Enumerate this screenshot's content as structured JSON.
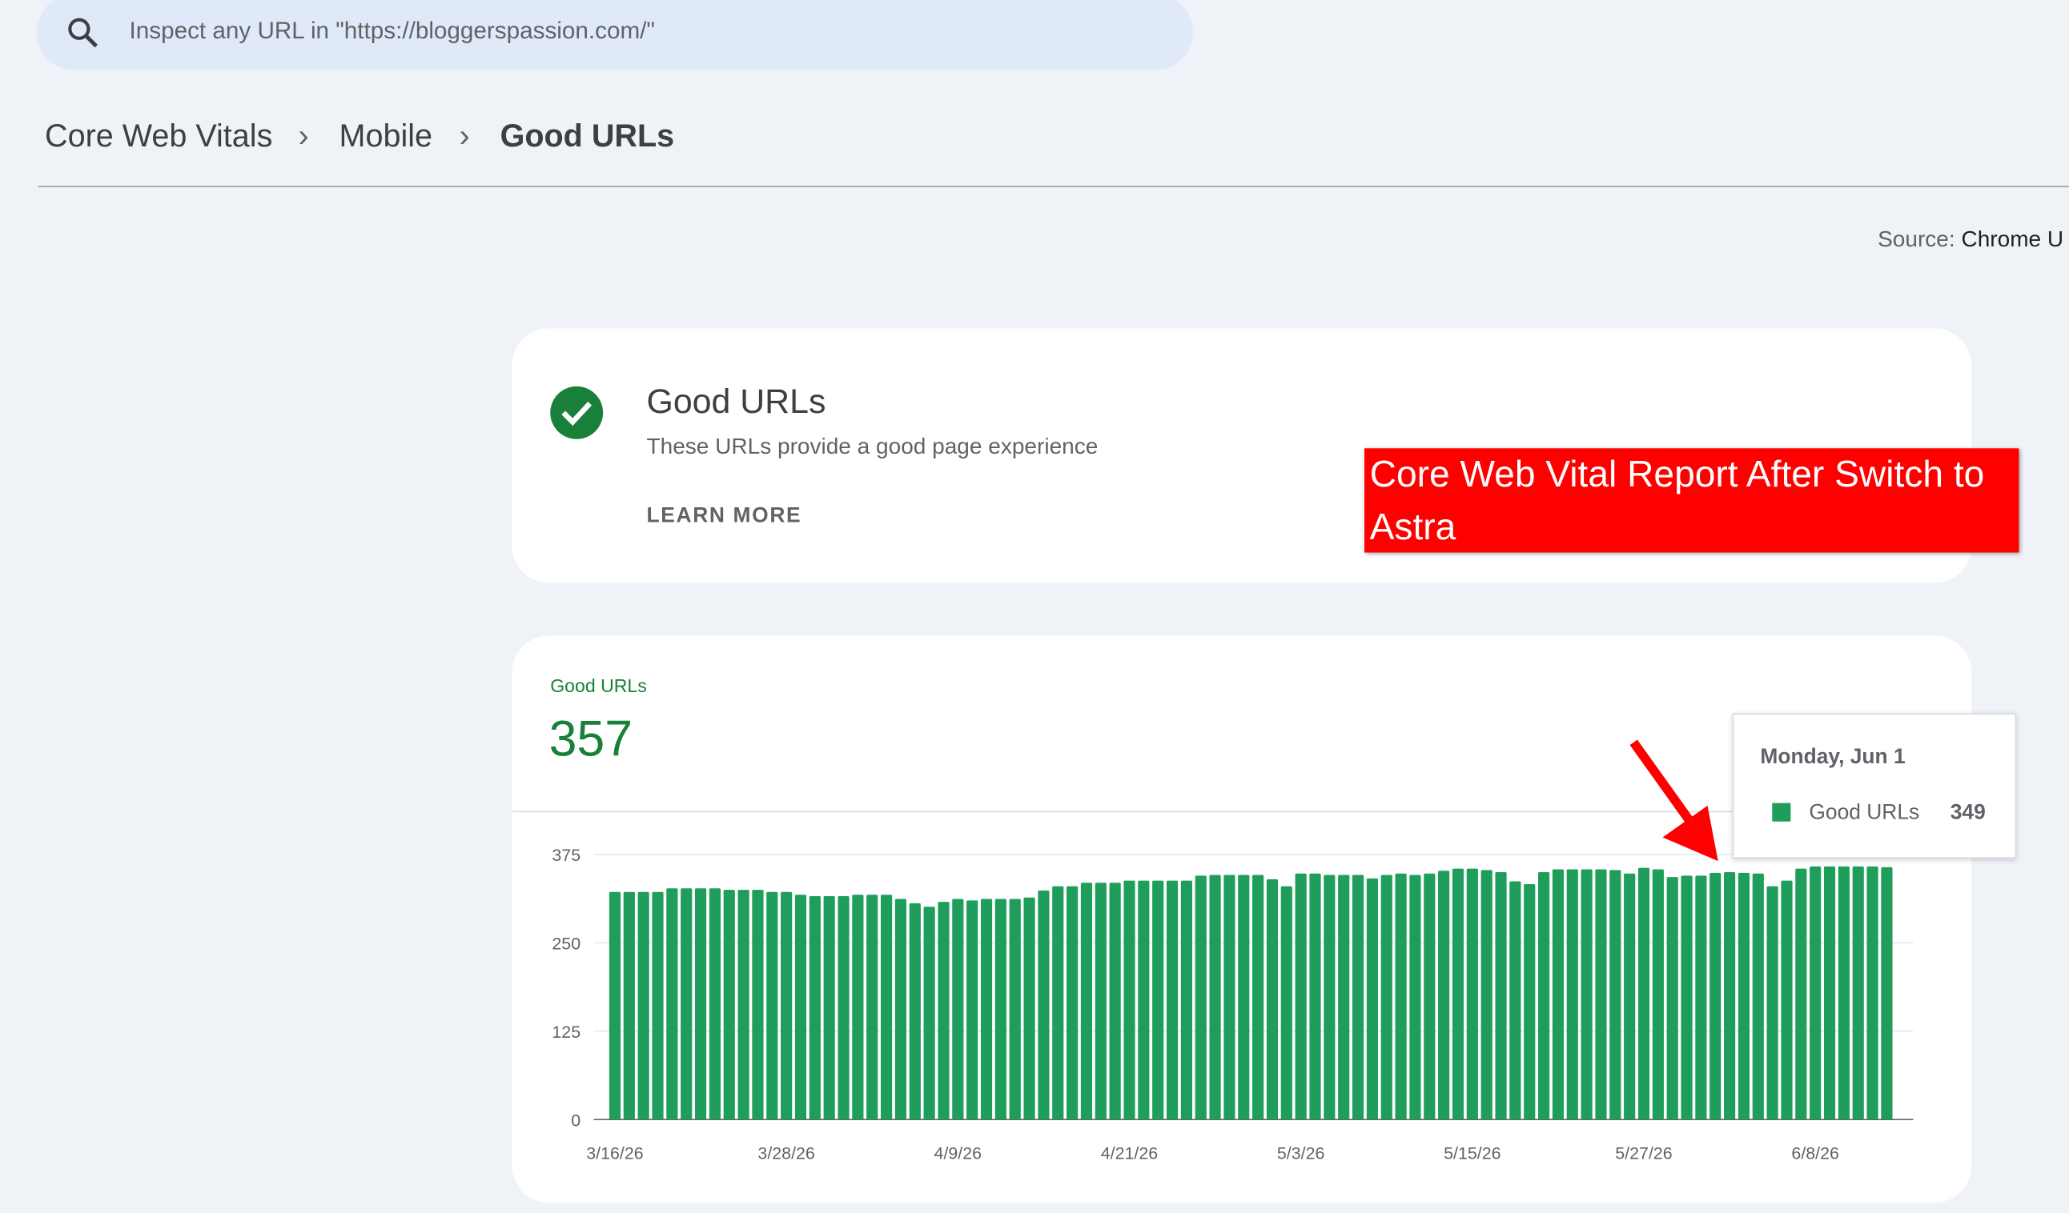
{
  "search": {
    "placeholder": "Inspect any URL in \"https://bloggerspassion.com/\""
  },
  "breadcrumb": [
    "Core Web Vitals",
    "Mobile",
    "Good URLs"
  ],
  "source": {
    "label": "Source:",
    "value": "Chrome U"
  },
  "status": {
    "title": "Good URLs",
    "description": "These URLs provide a good page experience",
    "learn_more": "LEARN MORE"
  },
  "annotation": "Core Web Vital Report After Switch to Astra",
  "chart_data": {
    "type": "bar",
    "tooltip_date": "Monday, Jun 1",
    "categories": [
      "3/16/26",
      null,
      null,
      null,
      null,
      null,
      null,
      null,
      null,
      null,
      null,
      null,
      "3/28/26",
      null,
      null,
      null,
      null,
      null,
      null,
      null,
      null,
      null,
      null,
      null,
      "4/9/26",
      null,
      null,
      null,
      null,
      null,
      null,
      null,
      null,
      null,
      null,
      null,
      "4/21/26",
      null,
      null,
      null,
      null,
      null,
      null,
      null,
      null,
      null,
      null,
      null,
      "5/3/26",
      null,
      null,
      null,
      null,
      null,
      null,
      null,
      null,
      null,
      null,
      null,
      "5/15/26",
      null,
      null,
      null,
      null,
      null,
      null,
      null,
      null,
      null,
      null,
      null,
      "5/27/26",
      null,
      null,
      null,
      null,
      null,
      null,
      null,
      null,
      null,
      null,
      null,
      "6/8/26",
      null,
      null,
      null,
      null,
      null
    ],
    "series": [
      {
        "name": "Good URLs",
        "color": "#1e9e5a",
        "values": [
          322,
          322,
          322,
          322,
          327,
          327,
          327,
          327,
          325,
          325,
          325,
          322,
          322,
          318,
          316,
          316,
          316,
          318,
          318,
          318,
          312,
          306,
          301,
          308,
          312,
          310,
          312,
          312,
          312,
          314,
          324,
          330,
          330,
          335,
          335,
          335,
          338,
          338,
          338,
          338,
          338,
          345,
          346,
          346,
          346,
          346,
          340,
          330,
          348,
          348,
          346,
          346,
          346,
          341,
          346,
          348,
          346,
          348,
          352,
          355,
          355,
          353,
          350,
          337,
          333,
          350,
          354,
          354,
          354,
          354,
          353,
          348,
          356,
          354,
          343,
          345,
          345,
          349,
          350,
          349,
          348,
          330,
          338,
          355,
          358,
          358,
          358,
          358,
          358,
          357
        ]
      }
    ],
    "ylim": [
      0,
      375
    ],
    "yticks": [
      0,
      125,
      250,
      375
    ],
    "grid": true
  }
}
